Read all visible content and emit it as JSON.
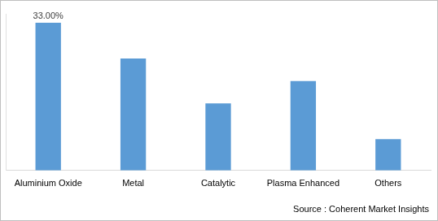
{
  "chart_data": {
    "type": "bar",
    "categories": [
      "Aluminium Oxide",
      "Metal",
      "Catalytic",
      "Plasma Enhanced",
      "Others"
    ],
    "values": [
      33,
      25,
      15,
      20,
      7
    ],
    "value_labels": [
      "33.00%",
      null,
      null,
      null,
      null
    ],
    "data_labels": true,
    "color": "#5b9bd5",
    "ylim": [
      0,
      35
    ],
    "tick_labels": "x",
    "grid": false,
    "source": "Source : Coherent Market Insights"
  }
}
